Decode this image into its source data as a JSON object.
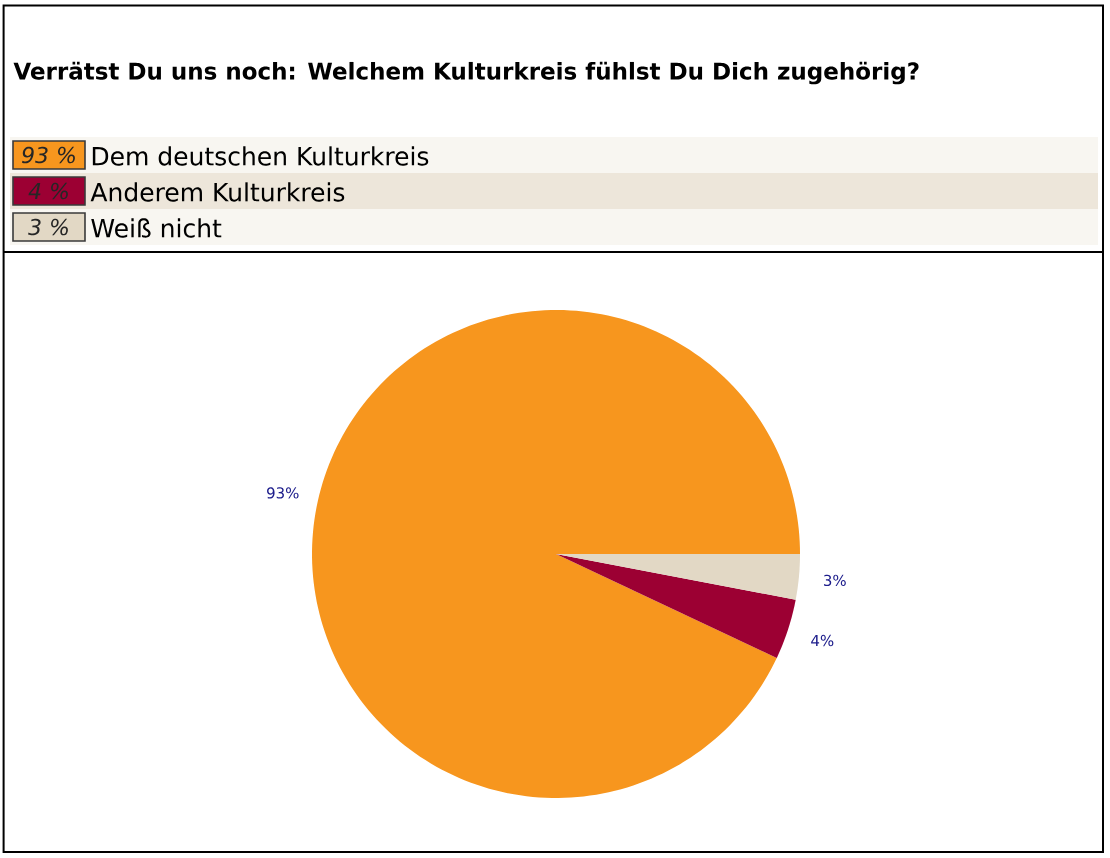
{
  "chart_data": {
    "type": "pie",
    "title": "Verrätst Du uns noch: Welchem Kulturkreis fühlst Du Dich zugehörig?",
    "categories": [
      "Dem deutschen Kulturkreis",
      "Anderem Kulturkreis",
      "Weiß nicht"
    ],
    "values": [
      93,
      4,
      3
    ],
    "colors": [
      "#f7961e",
      "#9c0033",
      "#e2d8c5"
    ],
    "value_labels": [
      "93%",
      "4%",
      "3%"
    ],
    "annotations": [
      "93 %",
      "4 %",
      "3 %"
    ],
    "legend": "top"
  }
}
